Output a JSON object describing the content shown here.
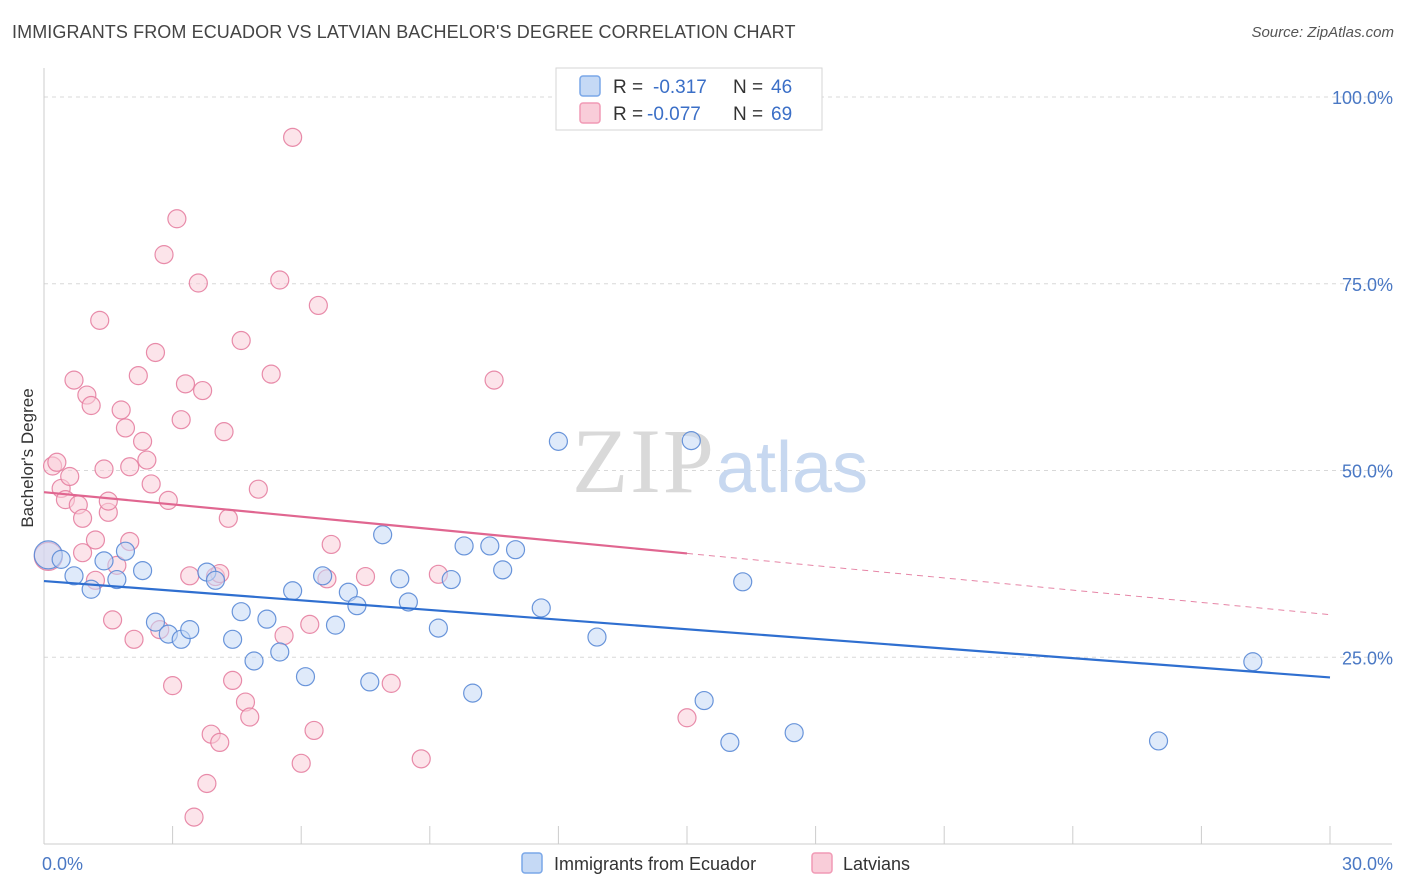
{
  "header": {
    "title": "IMMIGRANTS FROM ECUADOR VS LATVIAN BACHELOR'S DEGREE CORRELATION CHART",
    "source": "Source: ZipAtlas.com"
  },
  "watermark": {
    "part1": "ZIP",
    "part2": "atlas"
  },
  "legend": {
    "r_label": "R =",
    "n_label": "N =",
    "items": [
      {
        "r": "-0.317",
        "n": "46"
      },
      {
        "r": "-0.077",
        "n": "69"
      }
    ]
  },
  "chart_data": {
    "type": "scatter",
    "ylabel": "Bachelor's Degree",
    "xlim": [
      0,
      30
    ],
    "ylim": [
      0,
      105
    ],
    "x_tick_labels": [
      {
        "value": 0,
        "label": "0.0%"
      },
      {
        "value": 30,
        "label": "30.0%"
      }
    ],
    "y_tick_labels": [
      {
        "value": 25,
        "label": "25.0%"
      },
      {
        "value": 50,
        "label": "50.0%"
      },
      {
        "value": 75,
        "label": "75.0%"
      },
      {
        "value": 100,
        "label": "100.0%"
      }
    ],
    "gridlines": "dashed horizontal at 25, 50, 75, 100",
    "legend_placement": "top-center and bottom-center",
    "series": [
      {
        "name": "Immigrants from Ecuador",
        "color": "#7aa7e8",
        "stroke": "#5a8ad6",
        "fill": "#c5d9f5",
        "trend": {
          "x": [
            0,
            30
          ],
          "y": [
            35.2,
            22.3
          ],
          "color": "#2f6fd0"
        },
        "points": [
          [
            0.1,
            38.7
          ],
          [
            0.4,
            38.1
          ],
          [
            0.7,
            35.9
          ],
          [
            1.1,
            34.1
          ],
          [
            1.4,
            37.9
          ],
          [
            1.7,
            35.4
          ],
          [
            1.9,
            39.2
          ],
          [
            2.3,
            36.6
          ],
          [
            2.6,
            29.7
          ],
          [
            2.9,
            28.1
          ],
          [
            3.2,
            27.4
          ],
          [
            3.4,
            28.7
          ],
          [
            3.8,
            36.4
          ],
          [
            4.0,
            35.3
          ],
          [
            4.4,
            27.4
          ],
          [
            4.6,
            31.1
          ],
          [
            4.9,
            24.5
          ],
          [
            5.2,
            30.1
          ],
          [
            5.5,
            25.7
          ],
          [
            5.8,
            33.9
          ],
          [
            6.1,
            22.4
          ],
          [
            6.5,
            35.9
          ],
          [
            6.8,
            29.3
          ],
          [
            7.1,
            33.7
          ],
          [
            7.3,
            31.9
          ],
          [
            7.6,
            21.7
          ],
          [
            7.9,
            41.4
          ],
          [
            8.3,
            35.5
          ],
          [
            8.5,
            32.4
          ],
          [
            9.2,
            28.9
          ],
          [
            9.5,
            35.4
          ],
          [
            9.8,
            39.9
          ],
          [
            10.0,
            20.2
          ],
          [
            10.4,
            39.9
          ],
          [
            10.7,
            36.7
          ],
          [
            11.0,
            39.4
          ],
          [
            11.6,
            31.6
          ],
          [
            12.0,
            53.9
          ],
          [
            12.9,
            27.7
          ],
          [
            15.1,
            54.0
          ],
          [
            15.4,
            19.2
          ],
          [
            16.0,
            13.6
          ],
          [
            16.3,
            35.1
          ],
          [
            17.5,
            14.9
          ],
          [
            26.0,
            13.8
          ],
          [
            28.2,
            24.4
          ]
        ]
      },
      {
        "name": "Latvians",
        "color": "#f19ab5",
        "stroke": "#e57fa1",
        "fill": "#f9cdd9",
        "trend": {
          "x": [
            0,
            15
          ],
          "y": [
            47.1,
            38.9
          ],
          "color": "#e06690"
        },
        "trend_dashed": {
          "x": [
            15,
            30
          ],
          "y": [
            38.9,
            30.7
          ]
        },
        "points": [
          [
            0.1,
            38.5
          ],
          [
            0.2,
            50.6
          ],
          [
            0.3,
            51.1
          ],
          [
            0.4,
            47.6
          ],
          [
            0.5,
            46.1
          ],
          [
            0.6,
            49.2
          ],
          [
            0.7,
            62.1
          ],
          [
            0.8,
            45.4
          ],
          [
            0.9,
            43.6
          ],
          [
            1.0,
            60.1
          ],
          [
            1.1,
            58.7
          ],
          [
            1.2,
            35.3
          ],
          [
            1.3,
            70.1
          ],
          [
            1.4,
            50.2
          ],
          [
            1.5,
            44.4
          ],
          [
            1.6,
            30.0
          ],
          [
            1.7,
            37.3
          ],
          [
            1.8,
            58.1
          ],
          [
            1.9,
            55.7
          ],
          [
            2.0,
            40.5
          ],
          [
            2.1,
            27.4
          ],
          [
            2.2,
            62.7
          ],
          [
            2.3,
            53.9
          ],
          [
            2.4,
            51.4
          ],
          [
            2.5,
            48.2
          ],
          [
            2.6,
            65.8
          ],
          [
            2.7,
            28.7
          ],
          [
            2.8,
            78.9
          ],
          [
            2.9,
            46.0
          ],
          [
            3.0,
            21.2
          ],
          [
            3.1,
            83.7
          ],
          [
            3.2,
            56.8
          ],
          [
            3.3,
            61.6
          ],
          [
            3.4,
            35.9
          ],
          [
            3.5,
            3.6
          ],
          [
            3.6,
            75.1
          ],
          [
            3.7,
            60.7
          ],
          [
            3.8,
            8.1
          ],
          [
            3.9,
            14.7
          ],
          [
            4.0,
            35.8
          ],
          [
            4.1,
            13.6
          ],
          [
            4.2,
            55.2
          ],
          [
            4.3,
            43.6
          ],
          [
            4.4,
            21.9
          ],
          [
            4.6,
            67.4
          ],
          [
            4.7,
            19.0
          ],
          [
            4.8,
            17.0
          ],
          [
            5.0,
            47.5
          ],
          [
            5.3,
            62.9
          ],
          [
            5.5,
            75.5
          ],
          [
            5.6,
            27.9
          ],
          [
            5.8,
            94.6
          ],
          [
            6.0,
            10.8
          ],
          [
            6.2,
            29.4
          ],
          [
            6.3,
            15.2
          ],
          [
            6.4,
            72.1
          ],
          [
            6.7,
            40.1
          ],
          [
            7.5,
            35.8
          ],
          [
            8.1,
            21.5
          ],
          [
            8.8,
            11.4
          ],
          [
            9.2,
            36.1
          ],
          [
            10.5,
            62.1
          ],
          [
            15.0,
            16.9
          ],
          [
            0.9,
            39.0
          ],
          [
            1.2,
            40.7
          ],
          [
            1.5,
            45.9
          ],
          [
            2.0,
            50.5
          ],
          [
            4.1,
            36.2
          ],
          [
            6.6,
            35.5
          ]
        ]
      }
    ]
  }
}
